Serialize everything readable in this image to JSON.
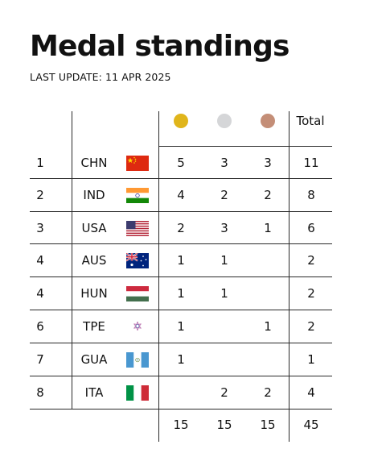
{
  "header": {
    "title": "Medal standings",
    "last_update": "LAST UPDATE: 11 APR 2025"
  },
  "columns": {
    "gold": "gold-medal",
    "silver": "silver-medal",
    "bronze": "bronze-medal",
    "total": "Total"
  },
  "colors": {
    "gold": "#E0B51B",
    "silver": "#D5D6D8",
    "bronze": "#C48E77",
    "lines": "#2a2a2a"
  },
  "rows": [
    {
      "rank": "1",
      "code": "CHN",
      "flag": "flag-china-icon",
      "gold": "5",
      "silver": "3",
      "bronze": "3",
      "total": "11"
    },
    {
      "rank": "2",
      "code": "IND",
      "flag": "flag-india-icon",
      "gold": "4",
      "silver": "2",
      "bronze": "2",
      "total": "8"
    },
    {
      "rank": "3",
      "code": "USA",
      "flag": "flag-usa-icon",
      "gold": "2",
      "silver": "3",
      "bronze": "1",
      "total": "6"
    },
    {
      "rank": "4",
      "code": "AUS",
      "flag": "flag-australia-icon",
      "gold": "1",
      "silver": "1",
      "bronze": "",
      "total": "2"
    },
    {
      "rank": "4",
      "code": "HUN",
      "flag": "flag-hungary-icon",
      "gold": "1",
      "silver": "1",
      "bronze": "",
      "total": "2"
    },
    {
      "rank": "6",
      "code": "TPE",
      "flag": "flag-chinese-taipei-icon",
      "gold": "1",
      "silver": "",
      "bronze": "1",
      "total": "2"
    },
    {
      "rank": "7",
      "code": "GUA",
      "flag": "flag-guatemala-icon",
      "gold": "1",
      "silver": "",
      "bronze": "",
      "total": "1"
    },
    {
      "rank": "8",
      "code": "ITA",
      "flag": "flag-italy-icon",
      "gold": "",
      "silver": "2",
      "bronze": "2",
      "total": "4"
    }
  ],
  "totals": {
    "gold": "15",
    "silver": "15",
    "bronze": "15",
    "total": "45"
  }
}
